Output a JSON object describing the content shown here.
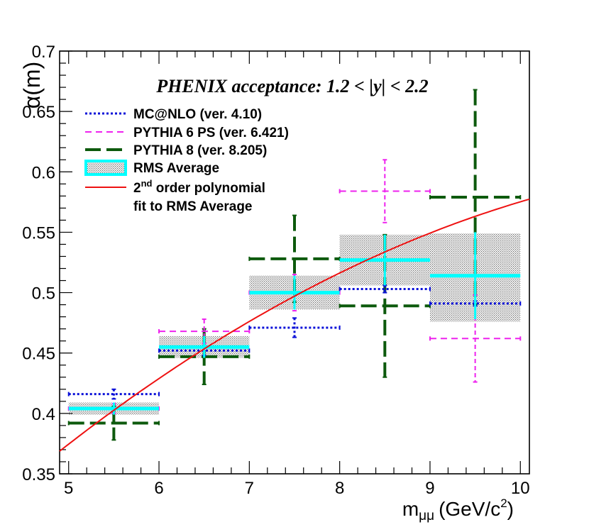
{
  "chart_data": {
    "type": "scatter",
    "annotation": "PHENIX acceptance: 1.2 < |y| < 2.2",
    "xlabel": "m",
    "xlabel_sub": "μμ",
    "xlabel_unit": "(GeV/c",
    "xlabel_sup": "2",
    "xlabel_close": ")",
    "ylabel": "α(m)",
    "xlim": [
      4.9,
      10.1
    ],
    "ylim": [
      0.35,
      0.7
    ],
    "xticks": [
      5,
      6,
      7,
      8,
      9,
      10
    ],
    "xtick_labels": [
      "5",
      "6",
      "7",
      "8",
      "9",
      "10"
    ],
    "yticks": [
      0.35,
      0.4,
      0.45,
      0.5,
      0.55,
      0.6,
      0.65,
      0.7
    ],
    "ytick_labels": [
      "0.35",
      "0.4",
      "0.45",
      "0.5",
      "0.55",
      "0.6",
      "0.65",
      "0.7"
    ],
    "legend": {
      "mcnlo": "MC@NLO (ver. 4.10)",
      "pythia6": "PYTHIA 6 PS (ver. 6.421)",
      "pythia8": "PYTHIA 8 (ver. 8.205)",
      "rms": "RMS Average",
      "fit_pre": "2",
      "fit_sup": "nd",
      "fit_post": " order polynomial",
      "fit_line2": "fit to RMS Average"
    },
    "colors": {
      "mcnlo": "#0a10d8",
      "pythia6": "#ee22ee",
      "pythia8": "#0d5a0d",
      "rms": "#00ffff",
      "fit": "#ee1111",
      "band": "#9a9a9a"
    },
    "series": [
      {
        "key": "mcnlo",
        "name": "MC@NLO (ver. 4.10)",
        "x_lo": [
          5,
          6,
          7,
          8,
          9
        ],
        "x_hi": [
          6,
          7,
          8,
          9,
          10
        ],
        "x": [
          5.5,
          6.5,
          7.5,
          8.5,
          9.5
        ],
        "y": [
          0.416,
          0.452,
          0.471,
          0.503,
          0.491
        ],
        "yerr": [
          0.004,
          0.004,
          0.008,
          0.003,
          0.002
        ]
      },
      {
        "key": "pythia6",
        "name": "PYTHIA 6 PS (ver. 6.421)",
        "x_lo": [
          5,
          6,
          7,
          8,
          9
        ],
        "x_hi": [
          6,
          7,
          8,
          9,
          10
        ],
        "x": [
          5.5,
          6.5,
          7.5,
          8.5,
          9.5
        ],
        "y": [
          0.404,
          0.468,
          0.5,
          0.584,
          0.462
        ],
        "yerr": [
          0.004,
          0.01,
          0.015,
          0.026,
          0.036
        ]
      },
      {
        "key": "pythia8",
        "name": "PYTHIA 8 (ver. 8.205)",
        "x_lo": [
          5,
          6,
          7,
          8,
          9
        ],
        "x_hi": [
          6,
          7,
          8,
          9,
          10
        ],
        "x": [
          5.5,
          6.5,
          7.5,
          8.5,
          9.5
        ],
        "y": [
          0.392,
          0.447,
          0.528,
          0.489,
          0.579
        ],
        "yerr": [
          0.014,
          0.023,
          0.036,
          0.059,
          0.089
        ]
      },
      {
        "key": "rms",
        "name": "RMS Average",
        "x_lo": [
          5,
          6,
          7,
          8,
          9
        ],
        "x_hi": [
          6,
          7,
          8,
          9,
          10
        ],
        "x": [
          5.5,
          6.5,
          7.5,
          8.5,
          9.5
        ],
        "y": [
          0.404,
          0.455,
          0.5,
          0.527,
          0.514
        ],
        "yerr": [
          0.005,
          0.009,
          0.014,
          0.021,
          0.036
        ]
      }
    ],
    "rms_band": {
      "x_lo": [
        5,
        6,
        7,
        8,
        9
      ],
      "x_hi": [
        6,
        7,
        8,
        9,
        10
      ],
      "y_lo": [
        0.399,
        0.446,
        0.486,
        0.506,
        0.476
      ],
      "y_hi": [
        0.409,
        0.464,
        0.514,
        0.548,
        0.549
      ]
    },
    "fit": {
      "name": "2nd order polynomial fit to RMS Average",
      "x_range": [
        4.9,
        10.1
      ],
      "y_at_x": {
        "4.9": 0.369,
        "5.5": 0.403,
        "6.5": 0.452,
        "7.5": 0.497,
        "8.5": 0.535,
        "9.5": 0.563,
        "10.1": 0.577
      }
    }
  }
}
